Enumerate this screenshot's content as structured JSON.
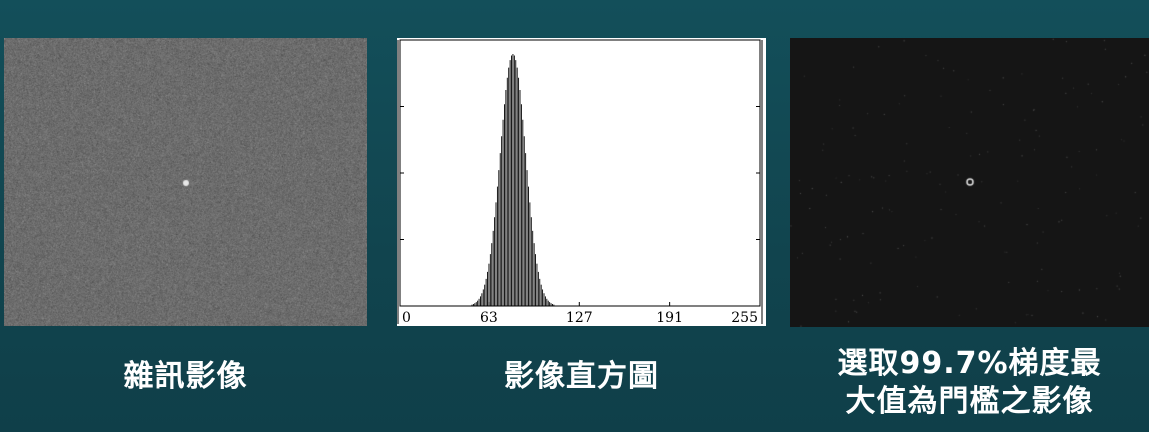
{
  "panels": {
    "noise": {
      "caption": "雜訊影像"
    },
    "histogram": {
      "caption": "影像直方圖"
    },
    "gradient": {
      "caption_line1": "選取99.7%梯度最",
      "caption_line2": "大值為門檻之影像"
    }
  },
  "chart_data": {
    "type": "bar",
    "title": "",
    "xlabel": "",
    "ylabel": "",
    "x_ticks": [
      "0",
      "63",
      "127",
      "191",
      "255"
    ],
    "xlim": [
      0,
      255
    ],
    "ylim": [
      0,
      1
    ],
    "distribution": {
      "mean": 80,
      "std": 9
    },
    "grid": false
  },
  "colors": {
    "background": "#134f5a",
    "noise_gray": "#6b6b6b",
    "histogram_bar": "#000000",
    "gradient_bg": "#151515"
  }
}
